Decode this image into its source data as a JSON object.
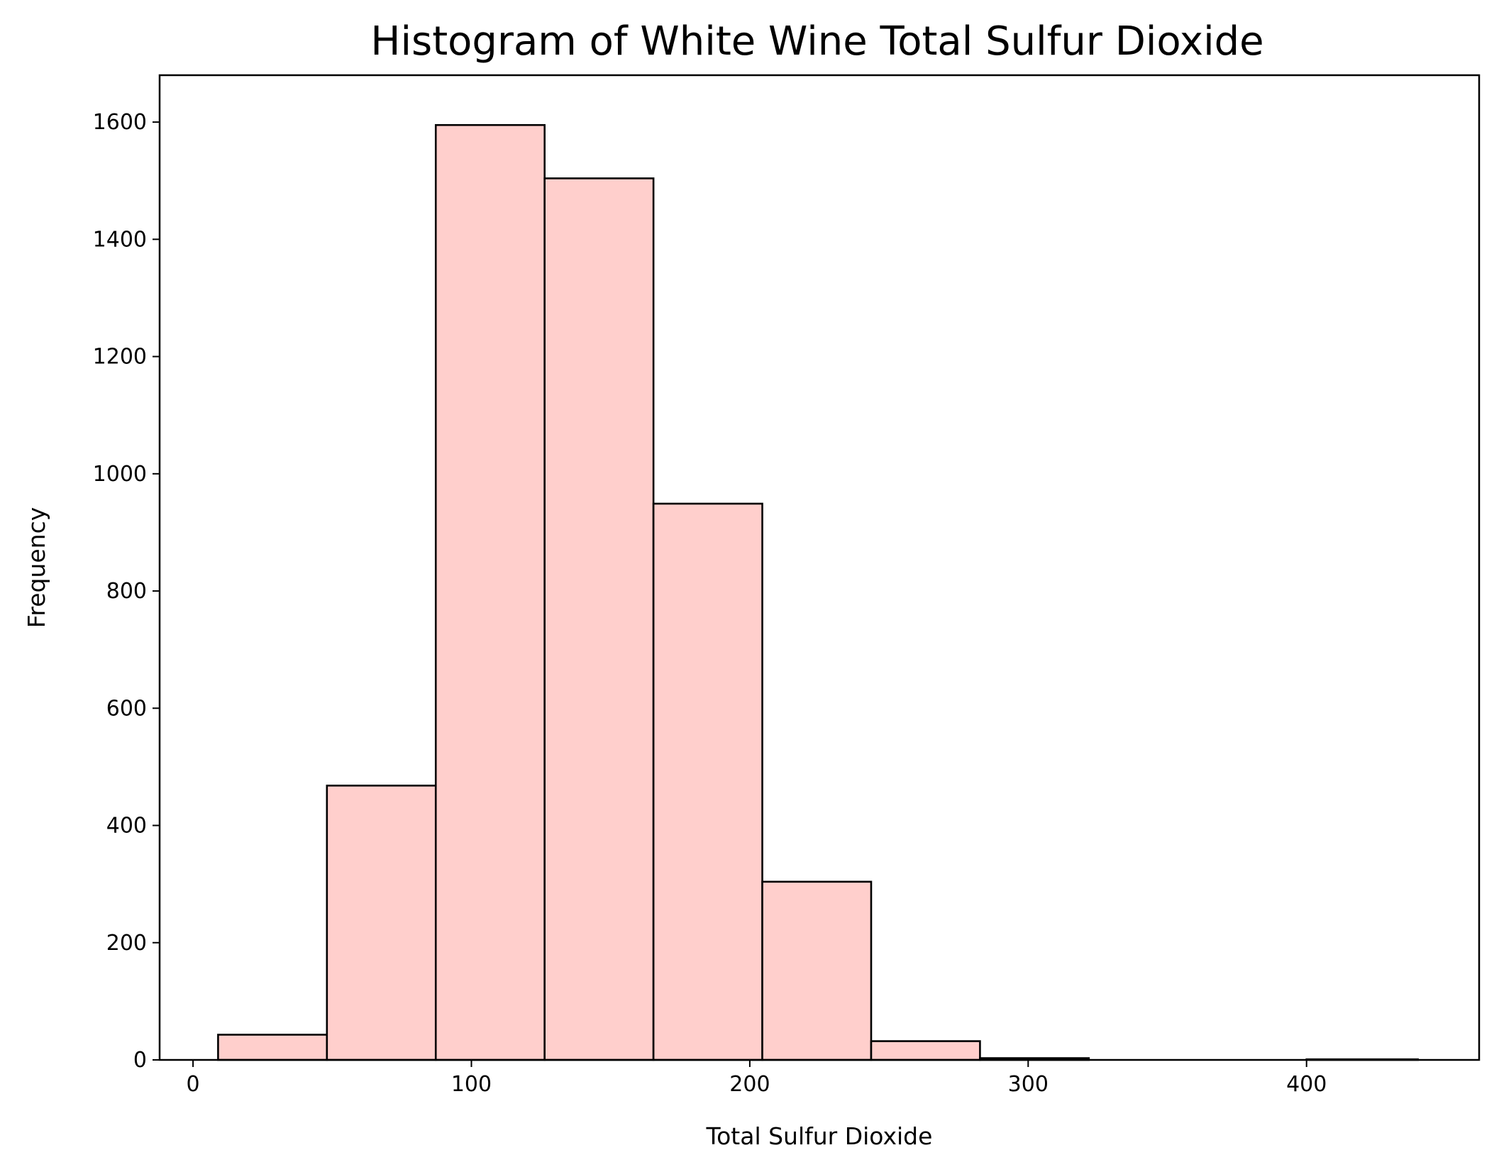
{
  "chart_data": {
    "type": "bar",
    "title": "Histogram of White Wine Total Sulfur Dioxide",
    "xlabel": "Total Sulfur Dioxide",
    "ylabel": "Frequency",
    "xlim": [
      -12,
      462
    ],
    "ylim": [
      0,
      1680
    ],
    "xticks": [
      0,
      100,
      200,
      300,
      400
    ],
    "yticks": [
      0,
      200,
      400,
      600,
      800,
      1000,
      1200,
      1400,
      1600
    ],
    "grid": false,
    "bins": [
      {
        "start": 9,
        "end": 48.1,
        "value": 43
      },
      {
        "start": 48.1,
        "end": 87.2,
        "value": 468
      },
      {
        "start": 87.2,
        "end": 126.3,
        "value": 1595
      },
      {
        "start": 126.3,
        "end": 165.4,
        "value": 1504
      },
      {
        "start": 165.4,
        "end": 204.5,
        "value": 949
      },
      {
        "start": 204.5,
        "end": 243.6,
        "value": 304
      },
      {
        "start": 243.6,
        "end": 282.7,
        "value": 32
      },
      {
        "start": 282.7,
        "end": 321.8,
        "value": 3
      },
      {
        "start": 321.8,
        "end": 360.9,
        "value": 0
      },
      {
        "start": 360.9,
        "end": 400.0,
        "value": 0
      },
      {
        "start": 400.0,
        "end": 440.0,
        "value": 1
      }
    ],
    "colors": {
      "bar_fill": "#ffcfcc",
      "bar_edge": "#000000",
      "axes": "#000000"
    }
  }
}
